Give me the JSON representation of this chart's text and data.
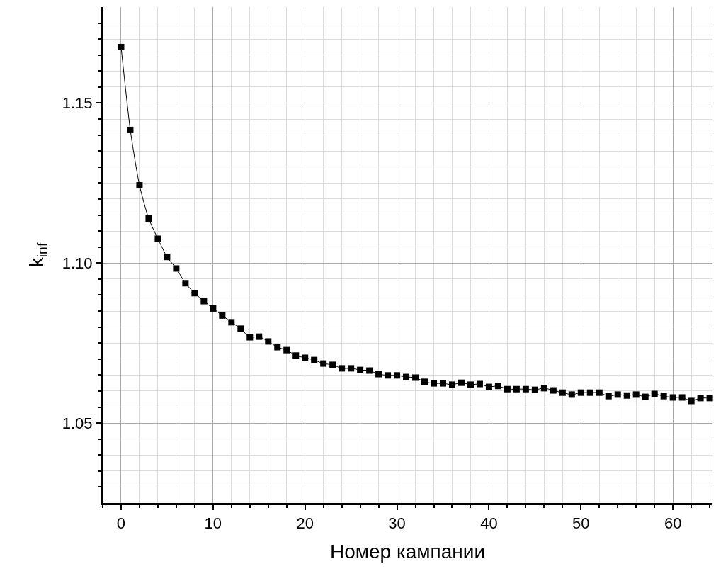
{
  "chart_data": {
    "type": "line",
    "xlabel": "Номер кампании",
    "ylabel": "k$_{inf}$",
    "x": [
      0,
      1,
      2,
      3,
      4,
      5,
      6,
      7,
      8,
      9,
      10,
      11,
      12,
      13,
      14,
      15,
      16,
      17,
      18,
      19,
      20,
      21,
      22,
      23,
      24,
      25,
      26,
      27,
      28,
      29,
      30,
      31,
      32,
      33,
      34,
      35,
      36,
      37,
      38,
      39,
      40,
      41,
      42,
      43,
      44,
      45,
      46,
      47,
      48,
      49,
      50,
      51,
      52,
      53,
      54,
      55,
      56,
      57,
      58,
      59,
      60,
      61,
      62,
      63,
      64
    ],
    "series": [
      {
        "color": "#000000",
        "values": [
          1.1675,
          1.1416,
          1.1243,
          1.1139,
          1.1076,
          1.1019,
          1.0983,
          1.0937,
          1.0906,
          1.0881,
          1.0858,
          1.0836,
          1.0815,
          1.0795,
          1.0768,
          1.077,
          1.0755,
          1.0737,
          1.0728,
          1.0711,
          1.0704,
          1.0697,
          1.0686,
          1.0682,
          1.0671,
          1.0671,
          1.0666,
          1.0664,
          1.0653,
          1.0649,
          1.0649,
          1.0644,
          1.0642,
          1.0629,
          1.0624,
          1.0624,
          1.062,
          1.0626,
          1.062,
          1.0622,
          1.0613,
          1.0616,
          1.0606,
          1.0606,
          1.0606,
          1.0604,
          1.0609,
          1.0602,
          1.0595,
          1.0589,
          1.0595,
          1.0595,
          1.0595,
          1.0584,
          1.0589,
          1.0586,
          1.0589,
          1.0582,
          1.0591,
          1.0584,
          1.058,
          1.058,
          1.0569,
          1.0578,
          1.0578
        ]
      }
    ],
    "marker": "square",
    "line_style": "solid",
    "grid": true,
    "xlim": [
      -2,
      64.3
    ],
    "ylim": [
      1.025,
      1.18
    ],
    "xticks": [
      {
        "value": -2,
        "label": null
      },
      0,
      {
        "value": 2,
        "label": null
      },
      {
        "value": 4,
        "label": null
      },
      {
        "value": 6,
        "label": null
      },
      {
        "value": 8,
        "label": null
      },
      10,
      {
        "value": 12,
        "label": null
      },
      {
        "value": 14,
        "label": null
      },
      {
        "value": 16,
        "label": null
      },
      {
        "value": 18,
        "label": null
      },
      20,
      {
        "value": 22,
        "label": null
      },
      {
        "value": 24,
        "label": null
      },
      {
        "value": 26,
        "label": null
      },
      {
        "value": 28,
        "label": null
      },
      30,
      {
        "value": 32,
        "label": null
      },
      {
        "value": 34,
        "label": null
      },
      {
        "value": 36,
        "label": null
      },
      {
        "value": 38,
        "label": null
      },
      40,
      {
        "value": 42,
        "label": null
      },
      {
        "value": 44,
        "label": null
      },
      {
        "value": 46,
        "label": null
      },
      {
        "value": 48,
        "label": null
      },
      50,
      {
        "value": 52,
        "label": null
      },
      {
        "value": 54,
        "label": null
      },
      {
        "value": 56,
        "label": null
      },
      {
        "value": 58,
        "label": null
      },
      60,
      {
        "value": 62,
        "label": null
      },
      {
        "value": 64,
        "label": null
      }
    ],
    "yticks": [
      {
        "value": 1.03,
        "label": null
      },
      {
        "value": 1.035,
        "label": null
      },
      {
        "value": 1.04,
        "label": null
      },
      {
        "value": 1.045,
        "label": null
      },
      {
        "value": 1.05,
        "label": "1.05"
      },
      {
        "value": 1.055,
        "label": null
      },
      {
        "value": 1.06,
        "label": null
      },
      {
        "value": 1.065,
        "label": null
      },
      {
        "value": 1.07,
        "label": null
      },
      {
        "value": 1.075,
        "label": null
      },
      {
        "value": 1.08,
        "label": null
      },
      {
        "value": 1.085,
        "label": null
      },
      {
        "value": 1.09,
        "label": null
      },
      {
        "value": 1.095,
        "label": null
      },
      {
        "value": 1.1,
        "label": "1.10"
      },
      {
        "value": 1.105,
        "label": null
      },
      {
        "value": 1.11,
        "label": null
      },
      {
        "value": 1.115,
        "label": null
      },
      {
        "value": 1.12,
        "label": null
      },
      {
        "value": 1.125,
        "label": null
      },
      {
        "value": 1.13,
        "label": null
      },
      {
        "value": 1.135,
        "label": null
      },
      {
        "value": 1.14,
        "label": null
      },
      {
        "value": 1.145,
        "label": null
      },
      {
        "value": 1.15,
        "label": "1.15"
      },
      {
        "value": 1.155,
        "label": null
      },
      {
        "value": 1.16,
        "label": null
      },
      {
        "value": 1.165,
        "label": null
      },
      {
        "value": 1.17,
        "label": null
      },
      {
        "value": 1.175,
        "label": null
      }
    ]
  }
}
